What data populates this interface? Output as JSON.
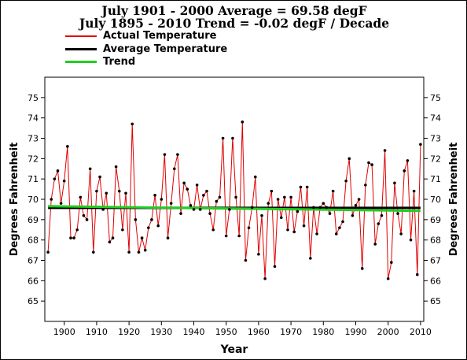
{
  "titles": {
    "line1": "July 1901 - 2000 Average = 69.58 degF",
    "line2": "July 1895 - 2010 Trend = -0.02 degF / Decade"
  },
  "legend": [
    {
      "label": "Actual Temperature",
      "color": "#e00000"
    },
    {
      "label": "Average Temperature",
      "color": "#000000"
    },
    {
      "label": "Trend",
      "color": "#22cc22"
    }
  ],
  "chart_data": {
    "type": "line",
    "xlabel": "Year",
    "ylabel": "Degrees Fahrenheit",
    "xlim": [
      1894,
      2011
    ],
    "ylim": [
      64,
      76
    ],
    "x_ticks": [
      1900,
      1910,
      1920,
      1930,
      1940,
      1950,
      1960,
      1970,
      1980,
      1990,
      2000,
      2010
    ],
    "x_tick_labels": [
      "1900",
      "1910",
      "1920",
      "1930",
      "1940",
      "1950",
      "1960",
      "1970",
      "1980",
      "1990",
      "2000",
      "2010"
    ],
    "y_ticks": [
      65,
      66,
      67,
      68,
      69,
      70,
      71,
      72,
      73,
      74,
      75
    ],
    "y_tick_labels": [
      "65",
      "66",
      "67",
      "68",
      "69",
      "70",
      "71",
      "72",
      "73",
      "74",
      "75"
    ],
    "grid": false,
    "legend_position": "top-left",
    "series": [
      {
        "name": "Actual Temperature",
        "color": "#e00000",
        "marker_color": "#000000",
        "x": [
          1895,
          1896,
          1897,
          1898,
          1899,
          1900,
          1901,
          1902,
          1903,
          1904,
          1905,
          1906,
          1907,
          1908,
          1909,
          1910,
          1911,
          1912,
          1913,
          1914,
          1915,
          1916,
          1917,
          1918,
          1919,
          1920,
          1921,
          1922,
          1923,
          1924,
          1925,
          1926,
          1927,
          1928,
          1929,
          1930,
          1931,
          1932,
          1933,
          1934,
          1935,
          1936,
          1937,
          1938,
          1939,
          1940,
          1941,
          1942,
          1943,
          1944,
          1945,
          1946,
          1947,
          1948,
          1949,
          1950,
          1951,
          1952,
          1953,
          1954,
          1955,
          1956,
          1957,
          1958,
          1959,
          1960,
          1961,
          1962,
          1963,
          1964,
          1965,
          1966,
          1967,
          1968,
          1969,
          1970,
          1971,
          1972,
          1973,
          1974,
          1975,
          1976,
          1977,
          1978,
          1979,
          1980,
          1981,
          1982,
          1983,
          1984,
          1985,
          1986,
          1987,
          1988,
          1989,
          1990,
          1991,
          1992,
          1993,
          1994,
          1995,
          1996,
          1997,
          1998,
          1999,
          2000,
          2001,
          2002,
          2003,
          2004,
          2005,
          2006,
          2007,
          2008,
          2009,
          2010
        ],
        "y": [
          67.4,
          70.0,
          71.0,
          71.4,
          69.8,
          70.9,
          72.6,
          68.1,
          68.1,
          68.5,
          70.1,
          69.2,
          69.0,
          71.5,
          67.4,
          70.4,
          71.1,
          69.5,
          70.3,
          67.9,
          68.1,
          71.6,
          70.4,
          68.5,
          70.3,
          67.4,
          73.7,
          69.0,
          67.4,
          68.1,
          67.5,
          68.6,
          69.0,
          70.2,
          68.7,
          70.0,
          72.2,
          68.1,
          69.8,
          71.5,
          72.2,
          69.3,
          70.8,
          70.5,
          69.7,
          69.5,
          70.7,
          69.5,
          70.2,
          70.4,
          69.3,
          68.5,
          69.9,
          70.1,
          73.0,
          68.2,
          69.5,
          73.0,
          70.1,
          68.2,
          73.8,
          67.0,
          68.6,
          69.6,
          71.1,
          67.3,
          69.2,
          66.1,
          69.8,
          70.4,
          66.7,
          70.0,
          69.1,
          70.1,
          68.5,
          70.1,
          68.4,
          69.4,
          70.6,
          68.7,
          70.6,
          67.1,
          69.6,
          68.3,
          69.6,
          69.8,
          69.6,
          69.3,
          70.4,
          68.3,
          68.6,
          68.9,
          70.9,
          72.0,
          69.2,
          69.7,
          70.0,
          66.6,
          70.7,
          71.8,
          71.7,
          67.8,
          68.8,
          69.2,
          72.4,
          66.1,
          66.9,
          70.8,
          69.3,
          68.3,
          71.4,
          71.9,
          68.0,
          70.4,
          66.3,
          72.7
        ]
      },
      {
        "name": "Average Temperature",
        "color": "#000000",
        "x": [
          1895,
          2010
        ],
        "y": [
          69.58,
          69.58
        ]
      },
      {
        "name": "Trend",
        "color": "#22cc22",
        "x": [
          1895,
          2010
        ],
        "y": [
          69.66,
          69.43
        ]
      }
    ]
  }
}
